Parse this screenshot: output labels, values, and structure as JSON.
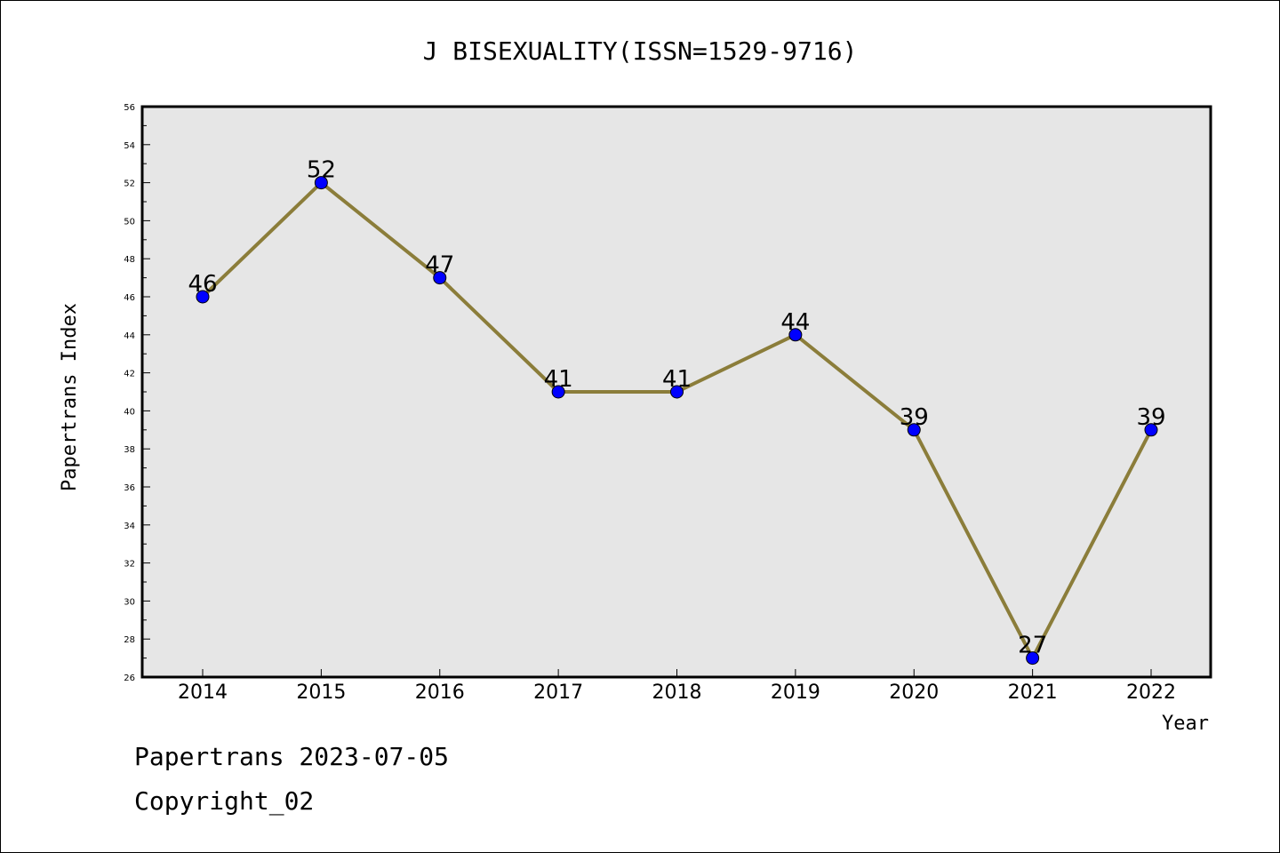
{
  "footer": {
    "line1": "Papertrans 2023-07-05",
    "line2": "Copyright_02"
  },
  "chart_data": {
    "type": "line",
    "title": "J BISEXUALITY(ISSN=1529-9716)",
    "xlabel": "Year",
    "ylabel": "Papertrans Index",
    "categories": [
      "2014",
      "2015",
      "2016",
      "2017",
      "2018",
      "2019",
      "2020",
      "2021",
      "2022"
    ],
    "series": [
      {
        "values": [
          46,
          52,
          47,
          41,
          41,
          44,
          39,
          27,
          39
        ]
      }
    ],
    "ylim": [
      26,
      56
    ],
    "ytick_step": 2,
    "yticks": [
      "26",
      "28",
      "30",
      "32",
      "34",
      "36",
      "38",
      "40",
      "42",
      "44",
      "46",
      "48",
      "50",
      "52",
      "54",
      "56"
    ],
    "data_labels": [
      "46",
      "52",
      "47",
      "41",
      "41",
      "44",
      "39",
      "27",
      "39"
    ],
    "grid": false,
    "colors": {
      "line": "#8b7d3a",
      "marker": "#0000ff",
      "plot_background": "#e6e6e6"
    }
  }
}
